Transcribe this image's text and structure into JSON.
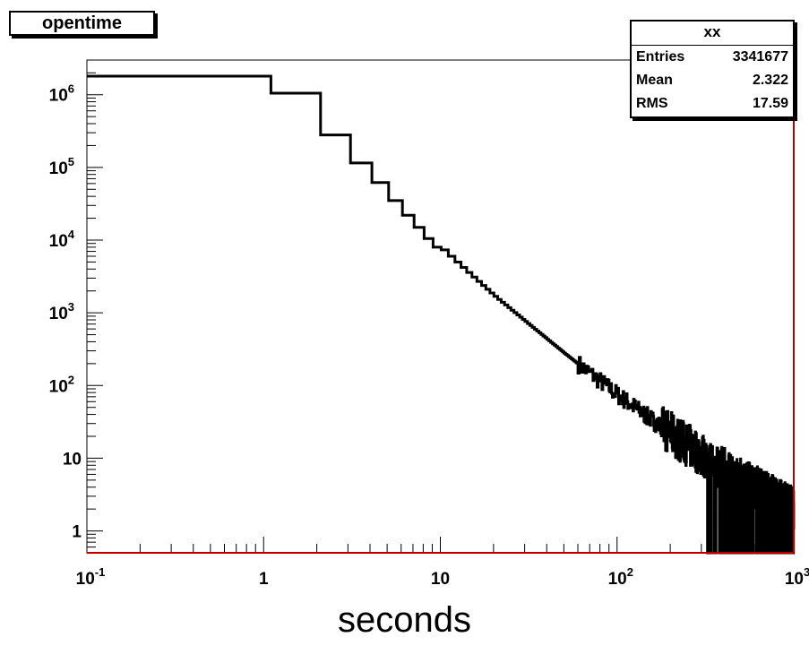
{
  "chart_data": {
    "type": "histogram",
    "title": "opentime",
    "xlabel": "seconds",
    "ylabel": "",
    "xscale": "log",
    "yscale": "log",
    "xlim": [
      0.1,
      1000
    ],
    "ylim": [
      0.5,
      3000000
    ],
    "grid": false,
    "line_color": "#000000",
    "axis_color": "#b00000",
    "x_tick_labels": [
      {
        "value": 0.1,
        "base": "10",
        "exp": "-1"
      },
      {
        "value": 1,
        "base": "1",
        "exp": ""
      },
      {
        "value": 10,
        "base": "10",
        "exp": ""
      },
      {
        "value": 100,
        "base": "10",
        "exp": "2"
      },
      {
        "value": 1000,
        "base": "10",
        "exp": "3"
      }
    ],
    "y_tick_labels": [
      {
        "value": 1,
        "base": "1",
        "exp": ""
      },
      {
        "value": 10,
        "base": "10",
        "exp": ""
      },
      {
        "value": 100,
        "base": "10",
        "exp": "2"
      },
      {
        "value": 1000,
        "base": "10",
        "exp": "3"
      },
      {
        "value": 10000,
        "base": "10",
        "exp": "4"
      },
      {
        "value": 100000,
        "base": "10",
        "exp": "5"
      },
      {
        "value": 1000000,
        "base": "10",
        "exp": "6"
      }
    ],
    "bins_coarse": [
      {
        "x0": 0.1,
        "x1": 1.1,
        "y": 1800000
      },
      {
        "x0": 1.1,
        "x1": 2.1,
        "y": 1050000
      },
      {
        "x0": 2.1,
        "x1": 3.1,
        "y": 280000
      },
      {
        "x0": 3.1,
        "x1": 4.1,
        "y": 115000
      },
      {
        "x0": 4.1,
        "x1": 5.1,
        "y": 62000
      },
      {
        "x0": 5.1,
        "x1": 6.1,
        "y": 35000
      },
      {
        "x0": 6.1,
        "x1": 7.1,
        "y": 22000
      },
      {
        "x0": 7.1,
        "x1": 8.1,
        "y": 15000
      },
      {
        "x0": 8.1,
        "x1": 9.1,
        "y": 10500
      },
      {
        "x0": 9.1,
        "x1": 10.1,
        "y": 8000
      }
    ],
    "tail_profile": [
      {
        "x": 10,
        "y": 7500
      },
      {
        "x": 20,
        "y": 1700
      },
      {
        "x": 50,
        "y": 280
      },
      {
        "x": 100,
        "y": 75
      },
      {
        "x": 200,
        "y": 22
      },
      {
        "x": 400,
        "y": 7
      },
      {
        "x": 1000,
        "y": 2
      }
    ],
    "stats": {
      "name": "xx",
      "rows": [
        {
          "label": "Entries",
          "value": "3341677"
        },
        {
          "label": "Mean",
          "value": "2.322"
        },
        {
          "label": "RMS",
          "value": "17.59"
        }
      ]
    }
  }
}
